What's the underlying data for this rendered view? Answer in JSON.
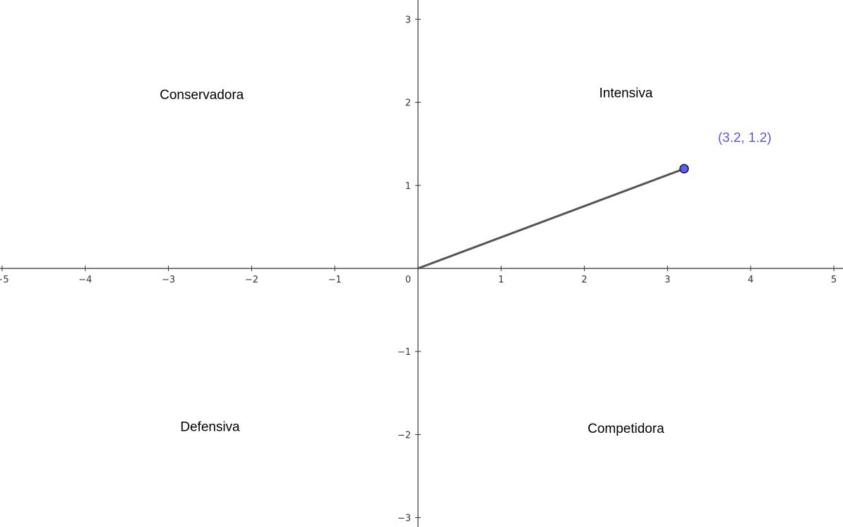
{
  "chart_data": {
    "type": "scatter",
    "title": "",
    "xlabel": "",
    "ylabel": "",
    "xlim": [
      -5,
      5
    ],
    "ylim": [
      -3,
      3
    ],
    "x_ticks": [
      -5,
      -4,
      -3,
      -2,
      -1,
      0,
      1,
      2,
      3,
      4,
      5
    ],
    "y_ticks": [
      -3,
      -2,
      -1,
      1,
      2,
      3
    ],
    "x_tick_labels": [
      "−5",
      "−4",
      "−3",
      "−2",
      "−1",
      "0",
      "1",
      "2",
      "3",
      "4",
      "5"
    ],
    "y_tick_labels": [
      "−3",
      "−2",
      "−1",
      "1",
      "2",
      "3"
    ],
    "grid": false,
    "quadrant_labels": [
      {
        "text": "Conservadora",
        "x": -2.6,
        "y": 2.1
      },
      {
        "text": "Intensiva",
        "x": 2.5,
        "y": 2.12
      },
      {
        "text": "Defensiva",
        "x": -2.5,
        "y": -1.9
      },
      {
        "text": "Competidora",
        "x": 2.5,
        "y": -1.92
      }
    ],
    "segment": {
      "from": [
        0,
        0
      ],
      "to": [
        3.2,
        1.2
      ]
    },
    "point": {
      "x": 3.2,
      "y": 1.2,
      "label": "(3.2, 1.2)"
    },
    "colors": {
      "axis": "#333333",
      "segment": "#555555",
      "point_fill": "#5a62e8",
      "point_stroke": "#1a1a4a",
      "point_label": "#5a5ae0"
    }
  }
}
